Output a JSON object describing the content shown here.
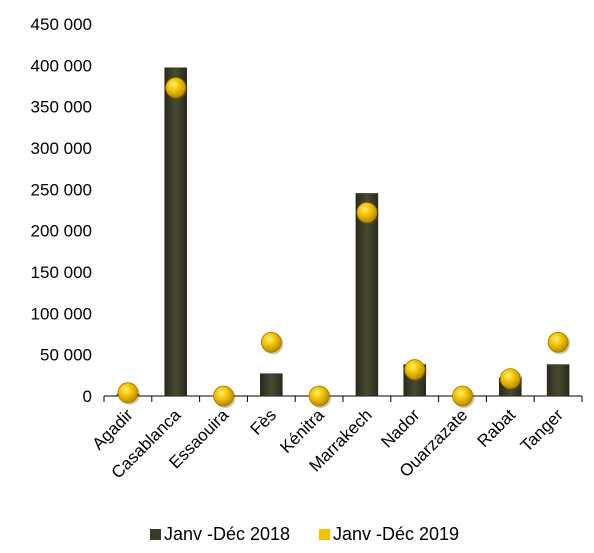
{
  "chart_data": {
    "type": "bar",
    "title": "",
    "xlabel": "",
    "ylabel": "",
    "ylim": [
      0,
      450000
    ],
    "yticks": [
      0,
      50000,
      100000,
      150000,
      200000,
      250000,
      300000,
      350000,
      400000,
      450000
    ],
    "ytick_labels": [
      "0",
      "50 000",
      "100 000",
      "150 000",
      "200 000",
      "250 000",
      "300 000",
      "350 000",
      "400 000",
      "450 000"
    ],
    "categories": [
      "Agadir",
      "Casablanca",
      "Essaouira",
      "Fès",
      "Kénitra",
      "Marrakech",
      "Nador",
      "Ouarzazate",
      "Rabat",
      "Tanger"
    ],
    "series": [
      {
        "name": "Janv -Déc 2018",
        "type": "bar",
        "color": "#3b3a27",
        "values": [
          2000,
          397000,
          0,
          27000,
          0,
          245000,
          38000,
          0,
          22000,
          38000
        ]
      },
      {
        "name": "Janv -Déc 2019",
        "type": "marker",
        "color": "#f2c200",
        "values": [
          4000,
          373000,
          0,
          65000,
          0,
          222000,
          32000,
          0,
          21000,
          65000
        ]
      }
    ],
    "legend_position": "bottom",
    "grid": false
  }
}
